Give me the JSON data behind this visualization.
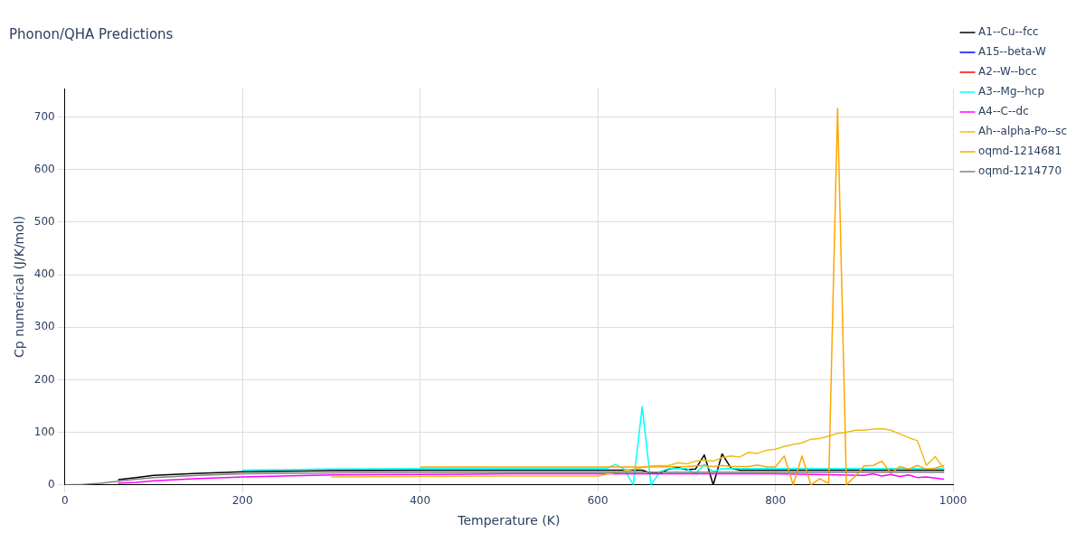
{
  "chart_data": {
    "type": "line",
    "title": "Phonon/QHA Predictions",
    "xlabel": "Temperature (K)",
    "ylabel": "Cp numerical (J/K/mol)",
    "xlim": [
      0,
      1000
    ],
    "xticks": [
      0,
      200,
      400,
      600,
      800,
      1000
    ],
    "ylim": [
      0,
      754
    ],
    "yticks": [
      0,
      100,
      200,
      300,
      400,
      500,
      600,
      700
    ],
    "grid": true,
    "legend": "right",
    "marker": "none",
    "line_style": "solid",
    "series": [
      {
        "name": "A1--Cu--fcc",
        "color": "#000000",
        "x": [
          60,
          80,
          100,
          150,
          200,
          300,
          400,
          500,
          600,
          640,
          650,
          660,
          670,
          680,
          690,
          700,
          710,
          720,
          730,
          740,
          750,
          760,
          800,
          900,
          990
        ],
        "values": [
          10,
          14,
          18,
          22,
          25,
          27,
          28,
          28,
          28,
          28,
          28,
          22,
          22,
          30,
          33,
          29,
          30,
          57,
          0,
          59,
          32,
          28,
          28,
          28,
          28
        ]
      },
      {
        "name": "A15--beta-W",
        "color": "#0000ff"
      },
      {
        "name": "A2--W--bcc",
        "color": "#ff0000"
      },
      {
        "name": "A3--Mg--hcp",
        "color": "#00ffff",
        "x": [
          200,
          300,
          400,
          500,
          600,
          610,
          620,
          630,
          640,
          650,
          660,
          670,
          680,
          690,
          700,
          710,
          720,
          730,
          740,
          800,
          900,
          990
        ],
        "values": [
          28,
          30,
          31,
          31,
          31,
          31,
          39,
          30,
          0,
          149,
          0,
          25,
          31,
          31,
          31,
          21,
          39,
          25,
          31,
          31,
          31,
          31
        ]
      },
      {
        "name": "A4--C--dc",
        "color": "#ff00ff",
        "x": [
          60,
          80,
          100,
          150,
          200,
          300,
          400,
          500,
          600,
          700,
          800,
          900,
          910,
          920,
          930,
          940,
          950,
          960,
          970,
          980,
          990
        ],
        "values": [
          3,
          5,
          8,
          12,
          15,
          19,
          20,
          21,
          21,
          21,
          21,
          18,
          21,
          17,
          20,
          16,
          19,
          14,
          15,
          13,
          11
        ]
      },
      {
        "name": "Ah--alpha-Po--sc",
        "color": "#ecbc1f",
        "x": [
          300,
          400,
          500,
          600,
          650,
          660,
          680,
          690,
          700,
          710,
          720,
          730,
          740,
          750,
          760,
          770,
          780,
          790,
          800,
          810,
          820,
          830,
          840,
          850,
          860,
          870,
          880,
          890,
          900,
          910,
          920,
          930,
          940,
          950,
          960,
          970,
          980,
          990
        ],
        "values": [
          15,
          16,
          17,
          17,
          33,
          36,
          37,
          42,
          40,
          45,
          47,
          45,
          52,
          55,
          53,
          62,
          60,
          66,
          68,
          73,
          77,
          80,
          87,
          88,
          93,
          98,
          100,
          104,
          104,
          106,
          107,
          104,
          97,
          90,
          84,
          37,
          54,
          30
        ]
      },
      {
        "name": "oqmd-1214681",
        "color": "#ffa500",
        "x": [
          400,
          500,
          600,
          650,
          700,
          710,
          720,
          730,
          740,
          750,
          760,
          770,
          780,
          790,
          800,
          810,
          820,
          830,
          840,
          850,
          860,
          870,
          880,
          890,
          900,
          910,
          920,
          930,
          940,
          950,
          960,
          970,
          980,
          990
        ],
        "values": [
          34,
          34,
          34,
          34,
          35,
          36,
          37,
          35,
          37,
          35,
          35,
          35,
          38,
          34,
          34,
          55,
          0,
          55,
          0,
          12,
          3,
          716,
          0,
          17,
          36,
          37,
          45,
          22,
          35,
          30,
          37,
          30,
          32,
          37
        ]
      },
      {
        "name": "oqmd-1214770",
        "color": "#808080",
        "x": [
          0,
          20,
          40,
          60,
          80,
          100,
          150,
          200,
          300,
          400,
          500,
          600,
          700,
          800,
          900,
          990
        ],
        "values": [
          0,
          1,
          3,
          7,
          11,
          14,
          18,
          21,
          23,
          24,
          24,
          24,
          24,
          24,
          24,
          24
        ]
      }
    ]
  }
}
